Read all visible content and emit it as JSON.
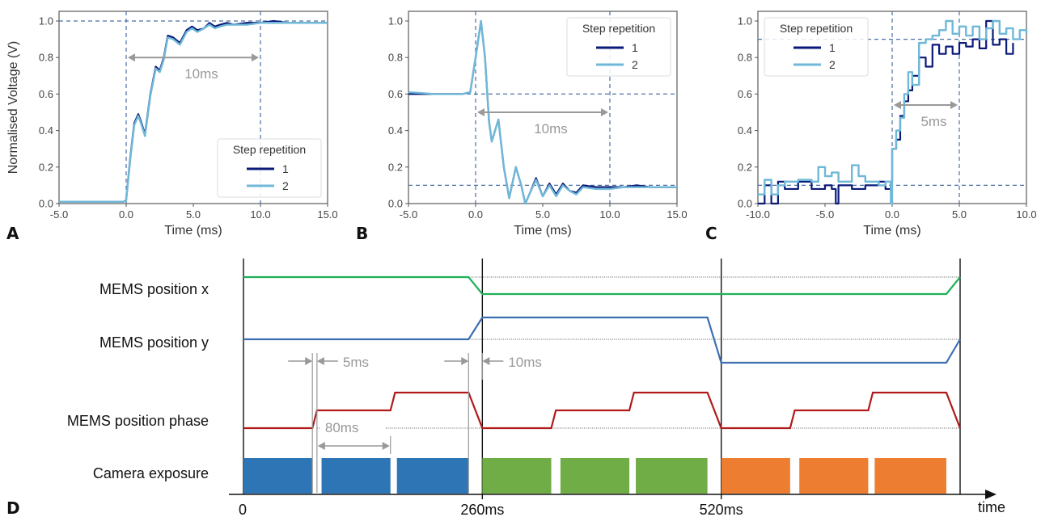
{
  "colors": {
    "series1": "#0a1a78",
    "series2": "#6fb8d8",
    "refline": "#4a6fa5",
    "arrow": "#999999",
    "mems_x": "#1fb05a",
    "mems_y": "#3d6fb0",
    "mems_phase": "#b01a1a",
    "exposure_blue": "#2e75b6",
    "exposure_green": "#70ad47",
    "exposure_orange": "#ed7d31"
  },
  "chart_data": [
    {
      "type": "line",
      "panel": "A",
      "xlabel": "Time (ms)",
      "ylabel": "Normalised Voltage (V)",
      "xlim": [
        -5,
        15
      ],
      "ylim": [
        0,
        1.0
      ],
      "xticks": [
        "-5.0",
        "0.0",
        "5.0",
        "10.0",
        "15.0"
      ],
      "yticks": [
        "0.0",
        "0.2",
        "0.4",
        "0.6",
        "0.8",
        "1.0"
      ],
      "legend": {
        "title": "Step repetition",
        "entries": [
          "1",
          "2"
        ],
        "placement": "lower-right"
      },
      "ref_lines": {
        "vertical": [
          0,
          10
        ],
        "horizontal": [
          1.0
        ]
      },
      "annotation": {
        "text": "10ms",
        "from": 0,
        "to": 10,
        "y": 0.8
      },
      "series": [
        {
          "name": "1",
          "x": [
            -5,
            -3,
            -1,
            -0.2,
            0,
            0.3,
            0.6,
            0.9,
            1.1,
            1.4,
            1.8,
            2.2,
            2.5,
            2.8,
            3.1,
            3.5,
            4.0,
            4.5,
            4.9,
            5.3,
            5.8,
            6.2,
            6.6,
            7.0,
            7.5,
            8,
            9,
            10,
            11,
            12,
            13,
            14,
            15
          ],
          "y": [
            0.01,
            0.01,
            0.01,
            0.01,
            0.02,
            0.25,
            0.44,
            0.49,
            0.45,
            0.38,
            0.6,
            0.75,
            0.73,
            0.8,
            0.92,
            0.91,
            0.88,
            0.95,
            0.97,
            0.95,
            0.96,
            0.99,
            0.97,
            0.98,
            0.99,
            0.98,
            0.99,
            0.99,
            1.0,
            0.99,
            0.99,
            0.99,
            0.99
          ]
        },
        {
          "name": "2",
          "x": [
            -5,
            -3,
            -1,
            -0.2,
            0,
            0.3,
            0.6,
            0.9,
            1.1,
            1.4,
            1.8,
            2.2,
            2.5,
            2.8,
            3.1,
            3.5,
            4.0,
            4.5,
            4.9,
            5.3,
            5.8,
            6.2,
            6.6,
            7.0,
            7.5,
            8,
            9,
            10,
            11,
            12,
            13,
            14,
            15
          ],
          "y": [
            0.01,
            0.01,
            0.01,
            0.01,
            0.02,
            0.24,
            0.43,
            0.48,
            0.44,
            0.37,
            0.59,
            0.74,
            0.72,
            0.79,
            0.91,
            0.9,
            0.87,
            0.94,
            0.96,
            0.94,
            0.96,
            0.98,
            0.96,
            0.97,
            0.98,
            0.98,
            0.98,
            0.99,
            0.99,
            0.99,
            0.99,
            0.99,
            0.99
          ]
        }
      ]
    },
    {
      "type": "line",
      "panel": "B",
      "xlabel": "Time (ms)",
      "ylabel": "",
      "xlim": [
        -5,
        15
      ],
      "ylim": [
        0,
        1.0
      ],
      "xticks": [
        "-5.0",
        "0.0",
        "5.0",
        "10.0",
        "15.0"
      ],
      "yticks": [
        "0.0",
        "0.2",
        "0.4",
        "0.6",
        "0.8",
        "1.0"
      ],
      "legend": {
        "title": "Step repetition",
        "entries": [
          "1",
          "2"
        ],
        "placement": "upper-right"
      },
      "ref_lines": {
        "vertical": [
          0,
          10
        ],
        "horizontal": [
          0.6,
          0.1
        ]
      },
      "annotation": {
        "text": "10ms",
        "from": 0,
        "to": 10,
        "y": 0.5
      },
      "series": [
        {
          "name": "1",
          "x": [
            -5,
            -3,
            -1,
            -0.4,
            0,
            0.4,
            0.7,
            1.0,
            1.2,
            1.7,
            2.1,
            2.5,
            3.0,
            3.4,
            3.7,
            4.0,
            4.5,
            5.0,
            5.5,
            6.0,
            6.5,
            7,
            7.5,
            8,
            9,
            10,
            11,
            12,
            13,
            14,
            15
          ],
          "y": [
            0.6,
            0.6,
            0.6,
            0.61,
            0.8,
            1.0,
            0.8,
            0.45,
            0.34,
            0.46,
            0.2,
            0.03,
            0.2,
            0.1,
            0.0,
            0.05,
            0.14,
            0.04,
            0.11,
            0.05,
            0.11,
            0.07,
            0.06,
            0.1,
            0.09,
            0.09,
            0.09,
            0.1,
            0.09,
            0.09,
            0.09
          ]
        },
        {
          "name": "2",
          "x": [
            -5,
            -3,
            -1,
            -0.4,
            0,
            0.4,
            0.7,
            1.0,
            1.2,
            1.7,
            2.1,
            2.5,
            3.0,
            3.4,
            3.7,
            4.0,
            4.5,
            5.0,
            5.5,
            6.0,
            6.5,
            7,
            7.5,
            8,
            9,
            10,
            11,
            12,
            13,
            14,
            15
          ],
          "y": [
            0.61,
            0.6,
            0.6,
            0.61,
            0.8,
            1.0,
            0.8,
            0.45,
            0.34,
            0.46,
            0.2,
            0.03,
            0.2,
            0.1,
            0.0,
            0.05,
            0.13,
            0.04,
            0.1,
            0.04,
            0.1,
            0.07,
            0.05,
            0.09,
            0.08,
            0.08,
            0.09,
            0.09,
            0.09,
            0.09,
            0.09
          ]
        }
      ]
    },
    {
      "type": "line",
      "panel": "C",
      "xlabel": "Time (ms)",
      "ylabel": "",
      "xlim": [
        -10,
        10
      ],
      "ylim": [
        0,
        1.0
      ],
      "xticks": [
        "-10.0",
        "-5.0",
        "0.0",
        "5.0",
        "10.0"
      ],
      "yticks": [
        "0.0",
        "0.2",
        "0.4",
        "0.6",
        "0.8",
        "1.0"
      ],
      "legend": {
        "title": "Step repetition",
        "entries": [
          "1",
          "2"
        ],
        "placement": "upper-left"
      },
      "ref_lines": {
        "vertical": [
          0,
          5
        ],
        "horizontal": [
          0.9,
          0.1
        ]
      },
      "annotation": {
        "text": "5ms",
        "from": 0,
        "to": 5,
        "y": 0.54
      },
      "series": [
        {
          "name": "1",
          "x": [
            -10,
            -9.5,
            -9,
            -8.5,
            -8,
            -7,
            -6,
            -5.5,
            -5,
            -4.5,
            -4.2,
            -4,
            -3,
            -2,
            -1,
            -0.5,
            -0.1,
            0,
            0.3,
            0.6,
            0.9,
            1.2,
            1.5,
            2,
            2.5,
            3,
            3.5,
            4,
            4.5,
            5,
            5.5,
            6,
            6.5,
            7,
            7.5,
            8,
            8.5,
            9
          ],
          "y": [
            0.0,
            0.1,
            0.0,
            0.12,
            0.08,
            0.12,
            0.08,
            0.08,
            0.1,
            0.08,
            0.0,
            0.1,
            0.08,
            0.1,
            0.12,
            0.08,
            0.12,
            0.3,
            0.35,
            0.48,
            0.56,
            0.62,
            0.7,
            0.8,
            0.75,
            0.87,
            0.82,
            0.86,
            0.82,
            0.88,
            0.86,
            0.9,
            0.85,
            1.0,
            0.87,
            0.9,
            0.82,
            0.88
          ]
        },
        {
          "name": "2",
          "x": [
            -10,
            -9.5,
            -9,
            -8.5,
            -8,
            -7,
            -6,
            -5.5,
            -5,
            -4.5,
            -4,
            -3,
            -2.5,
            -2,
            -1,
            -0.5,
            -0.1,
            0,
            0.3,
            0.6,
            0.9,
            1.2,
            1.5,
            2,
            2.5,
            3,
            3.5,
            4,
            4.5,
            5,
            5.5,
            6,
            6.5,
            7,
            7.5,
            8,
            8.5,
            9,
            9.5,
            10
          ],
          "y": [
            0.05,
            0.13,
            0.05,
            0.1,
            0.12,
            0.13,
            0.12,
            0.2,
            0.15,
            0.17,
            0.12,
            0.21,
            0.15,
            0.12,
            0.1,
            0.12,
            0.0,
            0.3,
            0.4,
            0.47,
            0.6,
            0.72,
            0.65,
            0.88,
            0.9,
            0.92,
            0.95,
            1.0,
            0.93,
            0.97,
            0.92,
            0.97,
            0.9,
            0.96,
            1.0,
            0.93,
            0.96,
            0.9,
            0.95,
            0.93
          ]
        }
      ]
    },
    {
      "type": "timing-diagram",
      "panel": "D",
      "xlabel": "time",
      "time_range_ms": [
        0,
        780
      ],
      "time_marks": [
        {
          "t": 0,
          "label": "0"
        },
        {
          "t": 260,
          "label": "260ms"
        },
        {
          "t": 520,
          "label": "520ms"
        }
      ],
      "rows": [
        {
          "label": "MEMS position x",
          "color_key": "mems_x",
          "levels": [
            [
              0,
              1
            ],
            [
              245,
              1
            ],
            [
              260,
              0
            ],
            [
              765,
              0
            ],
            [
              780,
              1
            ]
          ]
        },
        {
          "label": "MEMS position y",
          "color_key": "mems_y",
          "levels": [
            [
              0,
              0
            ],
            [
              245,
              0
            ],
            [
              260,
              1
            ],
            [
              505,
              1
            ],
            [
              520,
              -1
            ],
            [
              765,
              -1
            ],
            [
              780,
              0
            ]
          ]
        },
        {
          "label": "MEMS position phase",
          "color_key": "mems_phase",
          "levels": [
            [
              0,
              0
            ],
            [
              75,
              0
            ],
            [
              80,
              1
            ],
            [
              160,
              1
            ],
            [
              165,
              2
            ],
            [
              245,
              2
            ],
            [
              260,
              0
            ],
            [
              335,
              0
            ],
            [
              340,
              1
            ],
            [
              420,
              1
            ],
            [
              425,
              2
            ],
            [
              505,
              2
            ],
            [
              520,
              0
            ],
            [
              595,
              0
            ],
            [
              600,
              1
            ],
            [
              680,
              1
            ],
            [
              685,
              2
            ],
            [
              765,
              2
            ],
            [
              780,
              0
            ]
          ]
        },
        {
          "label": "Camera exposure",
          "blocks": [
            {
              "start": 0,
              "end": 75,
              "color_key": "exposure_blue"
            },
            {
              "start": 85,
              "end": 160,
              "color_key": "exposure_blue"
            },
            {
              "start": 167,
              "end": 245,
              "color_key": "exposure_blue"
            },
            {
              "start": 260,
              "end": 335,
              "color_key": "exposure_green"
            },
            {
              "start": 345,
              "end": 420,
              "color_key": "exposure_green"
            },
            {
              "start": 427,
              "end": 505,
              "color_key": "exposure_green"
            },
            {
              "start": 520,
              "end": 595,
              "color_key": "exposure_orange"
            },
            {
              "start": 605,
              "end": 680,
              "color_key": "exposure_orange"
            },
            {
              "start": 687,
              "end": 765,
              "color_key": "exposure_orange"
            }
          ]
        }
      ],
      "annotations": [
        {
          "text": "5ms",
          "between": [
            75,
            80
          ]
        },
        {
          "text": "10ms",
          "between": [
            245,
            260
          ]
        },
        {
          "text": "80ms",
          "between": [
            80,
            160
          ]
        }
      ]
    }
  ],
  "panels": {
    "a": "A",
    "b": "B",
    "c": "C",
    "d": "D"
  }
}
